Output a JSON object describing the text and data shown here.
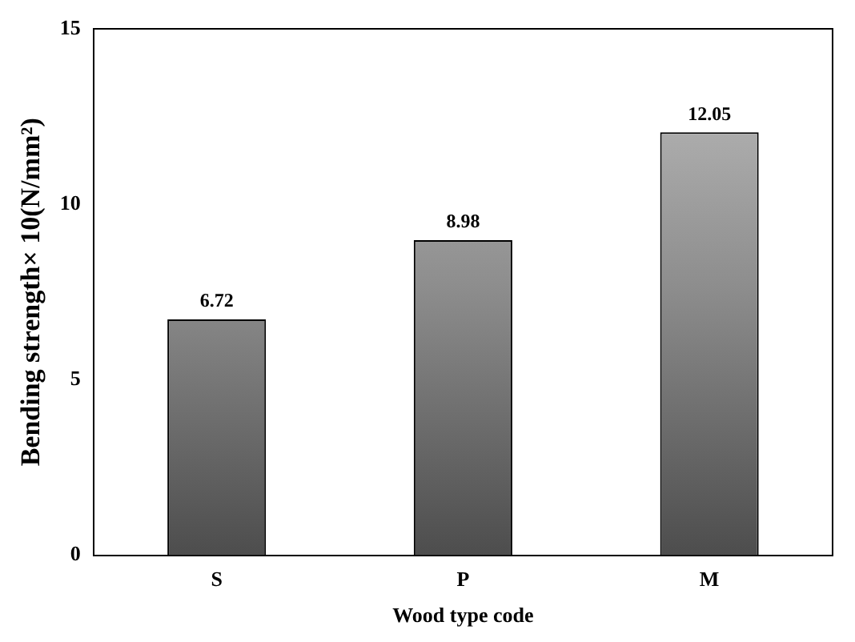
{
  "chart_data": {
    "type": "bar",
    "xlabel": "Wood type code",
    "ylabel": "Bending strength× 10(N/mm²)",
    "categories": [
      "S",
      "P",
      "M"
    ],
    "values": [
      6.72,
      8.98,
      12.05
    ],
    "color": "#8c8c8c",
    "ylim": [
      0,
      15
    ],
    "yticks": [
      0,
      5,
      10,
      15
    ],
    "grid": false,
    "legend": false,
    "data_labels": true
  }
}
